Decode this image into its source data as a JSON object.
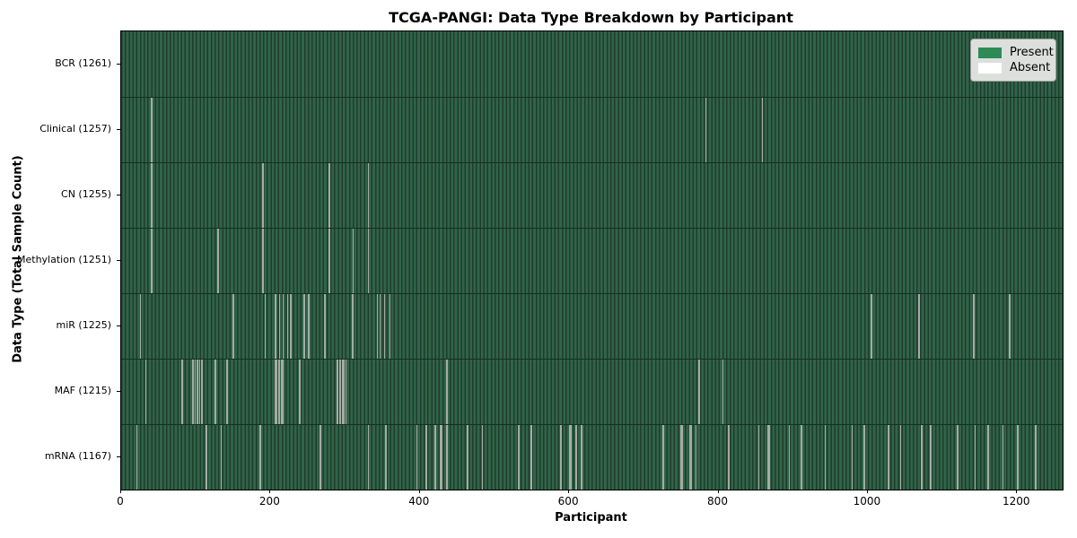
{
  "chart_data": {
    "type": "heatmap",
    "title": "TCGA-PANGI: Data Type Breakdown by Participant",
    "xlabel": "Participant",
    "ylabel": "Data Type (Total Sample Count)",
    "x_range": [
      0,
      1261
    ],
    "x_ticks": [
      0,
      200,
      400,
      600,
      800,
      1000,
      1200
    ],
    "grid": false,
    "legend_position": "upper right",
    "legend": [
      {
        "label": "Present",
        "color": "#2e8b57"
      },
      {
        "label": "Absent",
        "color": "#ffffff"
      }
    ],
    "colors": {
      "present_fill": "#316449",
      "bar_edge": "#1e3c2b",
      "absent_stripe": "#a4aca4",
      "row_separator": "#14301f",
      "legend_bg": "#dcdfdc"
    },
    "rows": [
      {
        "data_type": "BCR",
        "label": "BCR (1261)",
        "total_sample_count": 1261,
        "absent_runs": []
      },
      {
        "data_type": "Clinical",
        "label": "Clinical (1257)",
        "total_sample_count": 1257,
        "absent_runs": [
          [
            40,
            2
          ],
          [
            782,
            1
          ],
          [
            858,
            1
          ]
        ]
      },
      {
        "data_type": "CN",
        "label": "CN (1255)",
        "total_sample_count": 1255,
        "absent_runs": [
          [
            40,
            1
          ],
          [
            189,
            2
          ],
          [
            278,
            2
          ],
          [
            330,
            1
          ]
        ]
      },
      {
        "data_type": "Methylation",
        "label": "Methylation (1251)",
        "total_sample_count": 1251,
        "absent_runs": [
          [
            40,
            1
          ],
          [
            129,
            2
          ],
          [
            189,
            2
          ],
          [
            278,
            2
          ],
          [
            310,
            1
          ],
          [
            330,
            2
          ]
        ]
      },
      {
        "data_type": "miR",
        "label": "miR (1225)",
        "total_sample_count": 1225,
        "absent_runs": [
          [
            25,
            2
          ],
          [
            149,
            2
          ],
          [
            192,
            2
          ],
          [
            206,
            2
          ],
          [
            211,
            2
          ],
          [
            216,
            2
          ],
          [
            222,
            1
          ],
          [
            226,
            1
          ],
          [
            244,
            2
          ],
          [
            250,
            2
          ],
          [
            272,
            2
          ],
          [
            309,
            2
          ],
          [
            342,
            2
          ],
          [
            346,
            2
          ],
          [
            352,
            1
          ],
          [
            359,
            1
          ],
          [
            1004,
            2
          ],
          [
            1068,
            2
          ],
          [
            1141,
            2
          ],
          [
            1189,
            2
          ]
        ]
      },
      {
        "data_type": "MAF",
        "label": "MAF (1215)",
        "total_sample_count": 1215,
        "absent_runs": [
          [
            32,
            2
          ],
          [
            81,
            2
          ],
          [
            95,
            2
          ],
          [
            98,
            2
          ],
          [
            101,
            2
          ],
          [
            104,
            2
          ],
          [
            107,
            2
          ],
          [
            125,
            2
          ],
          [
            141,
            2
          ],
          [
            206,
            3
          ],
          [
            210,
            3
          ],
          [
            214,
            3
          ],
          [
            238,
            2
          ],
          [
            288,
            3
          ],
          [
            292,
            3
          ],
          [
            296,
            3
          ],
          [
            300,
            2
          ],
          [
            435,
            2
          ],
          [
            773,
            2
          ],
          [
            805,
            2
          ]
        ]
      },
      {
        "data_type": "mRNA",
        "label": "mRNA (1167)",
        "total_sample_count": 1167,
        "absent_runs": [
          [
            20,
            2
          ],
          [
            113,
            2
          ],
          [
            133,
            2
          ],
          [
            185,
            2
          ],
          [
            266,
            2
          ],
          [
            330,
            2
          ],
          [
            354,
            2
          ],
          [
            395,
            2
          ],
          [
            407,
            3
          ],
          [
            419,
            3
          ],
          [
            427,
            3
          ],
          [
            435,
            2
          ],
          [
            463,
            2
          ],
          [
            483,
            2
          ],
          [
            531,
            3
          ],
          [
            548,
            2
          ],
          [
            588,
            2
          ],
          [
            600,
            3
          ],
          [
            608,
            3
          ],
          [
            616,
            2
          ],
          [
            725,
            2
          ],
          [
            749,
            3
          ],
          [
            761,
            3
          ],
          [
            769,
            2
          ],
          [
            813,
            2
          ],
          [
            853,
            2
          ],
          [
            866,
            3
          ],
          [
            894,
            2
          ],
          [
            910,
            2
          ],
          [
            942,
            2
          ],
          [
            978,
            2
          ],
          [
            994,
            2
          ],
          [
            1027,
            2
          ],
          [
            1043,
            2
          ],
          [
            1071,
            2
          ],
          [
            1083,
            3
          ],
          [
            1119,
            2
          ],
          [
            1143,
            2
          ],
          [
            1160,
            2
          ],
          [
            1180,
            2
          ],
          [
            1200,
            2
          ],
          [
            1224,
            2
          ]
        ]
      }
    ]
  }
}
